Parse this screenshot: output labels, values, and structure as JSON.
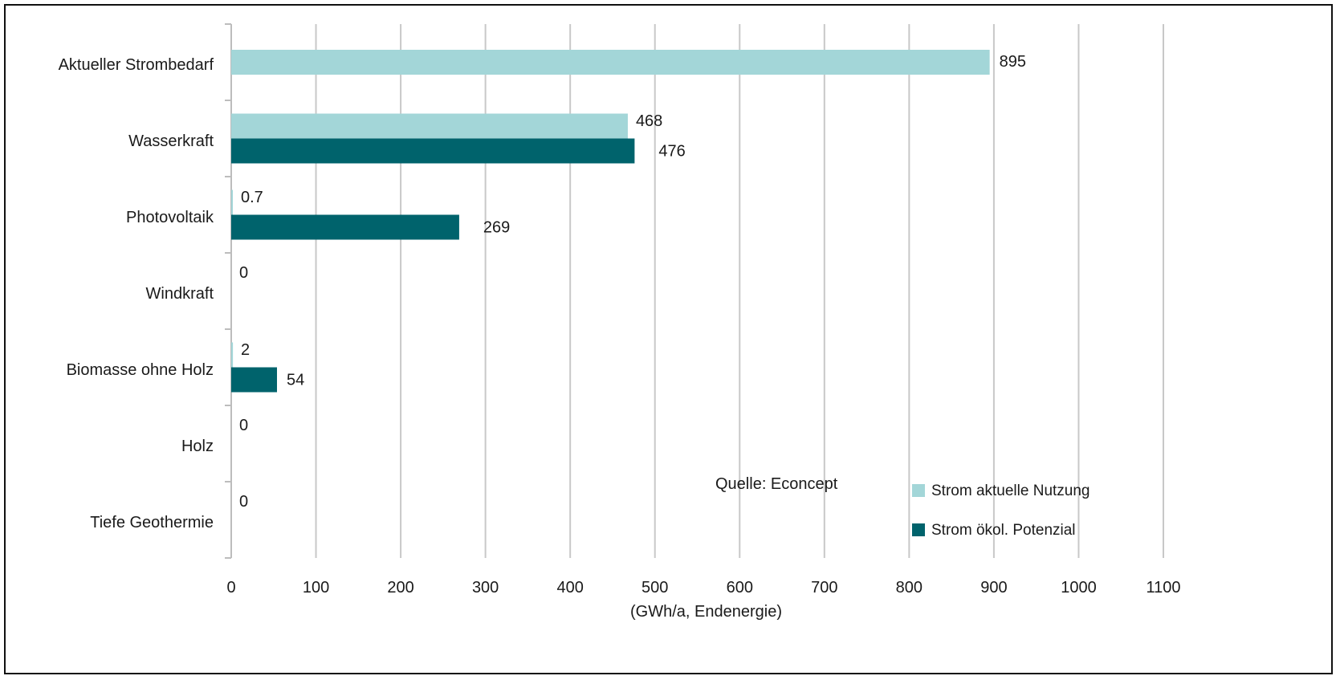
{
  "chart_data": {
    "type": "bar",
    "orientation": "horizontal",
    "categories": [
      "Aktueller Strombedarf",
      "Wasserkraft",
      "Photovoltaik",
      "Windkraft",
      "Biomasse ohne Holz",
      "Holz",
      "Tiefe Geothermie"
    ],
    "series": [
      {
        "name": "Strom aktuelle Nutzung",
        "color": "#a3d6d8",
        "values": [
          895,
          468,
          0.7,
          0,
          2,
          0,
          0
        ],
        "labels": [
          "895",
          "468",
          "0.7",
          "0",
          "2",
          "0",
          "0"
        ]
      },
      {
        "name": "Strom ökol. Potenzial",
        "color": "#00636c",
        "values": [
          null,
          476,
          269,
          null,
          54,
          null,
          null
        ],
        "labels": [
          null,
          "476",
          "269",
          null,
          "54",
          null,
          null
        ]
      }
    ],
    "xlabel": "(GWh/a, Endenergie)",
    "xlim": [
      0,
      1100
    ],
    "xticks": [
      0,
      100,
      200,
      300,
      400,
      500,
      600,
      700,
      800,
      900,
      1000,
      1100
    ],
    "grid": "vertical",
    "legend": "bottom-right",
    "source": "Quelle: Econcept"
  }
}
